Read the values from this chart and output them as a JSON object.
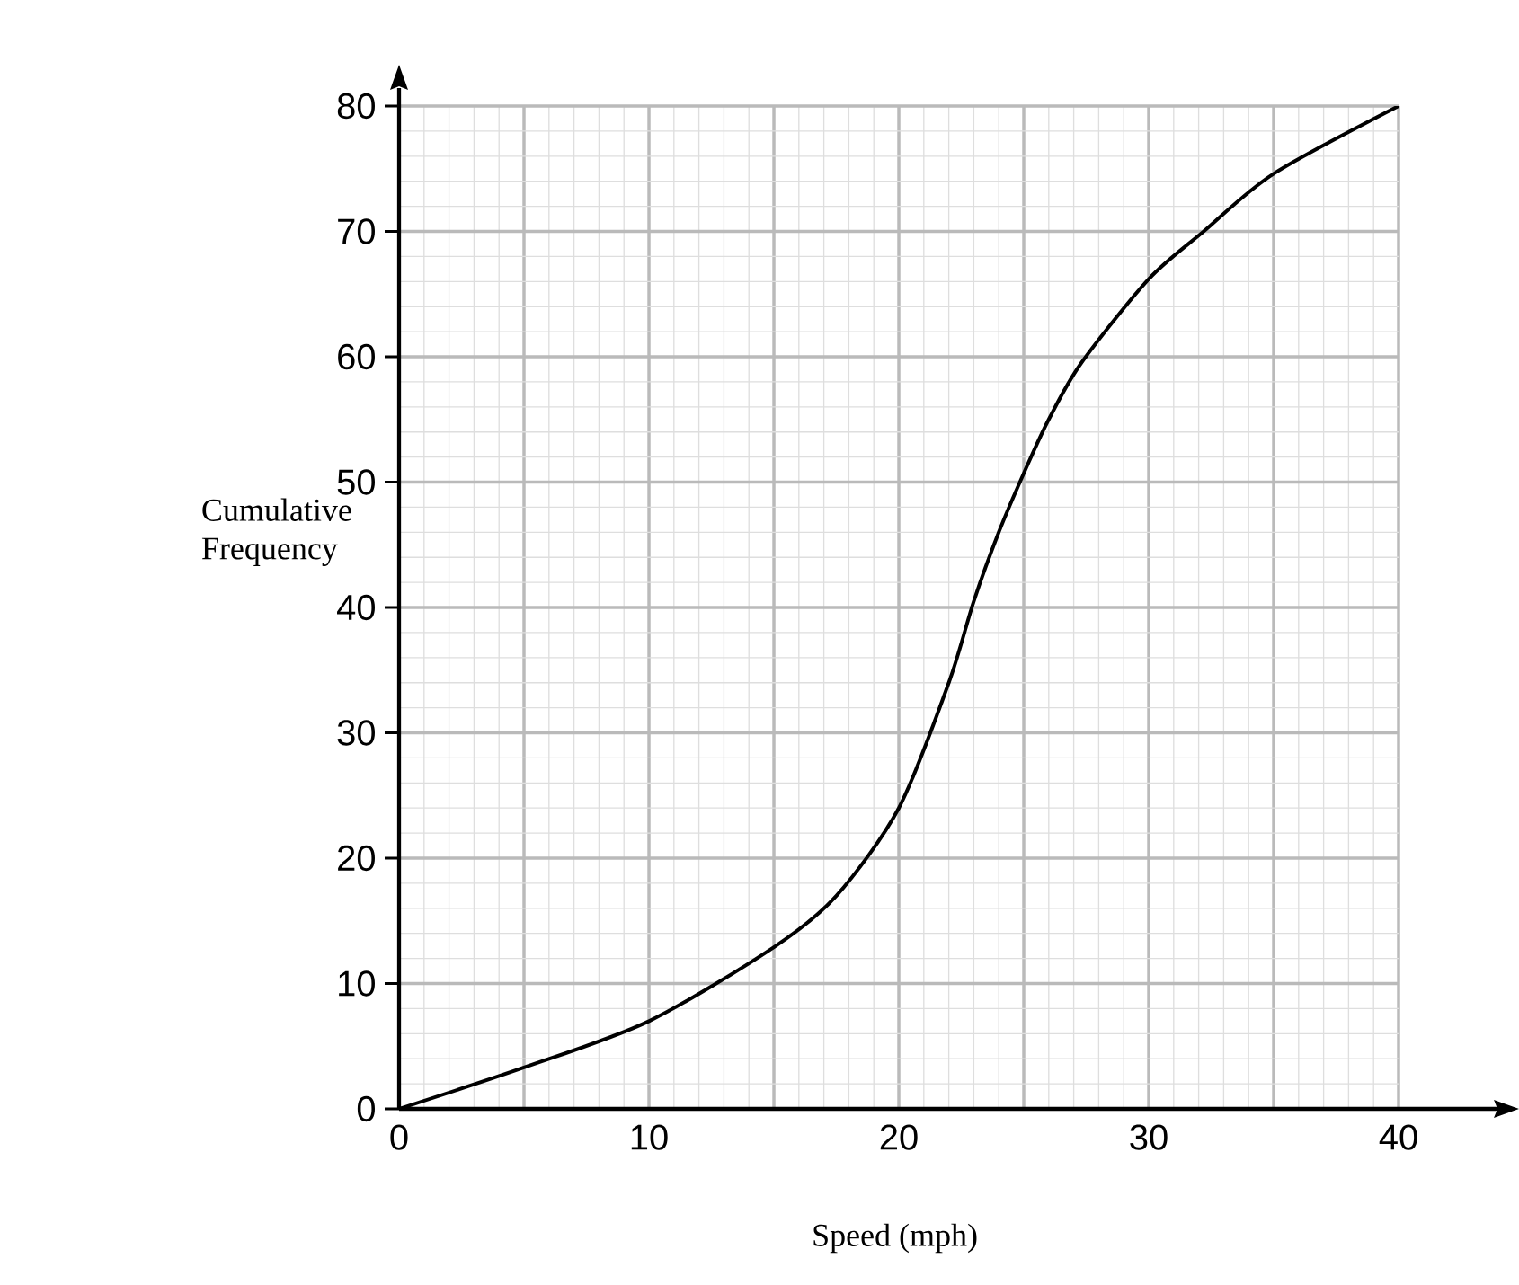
{
  "chart_data": {
    "type": "line",
    "xlabel": "Speed (mph)",
    "ylabel": "Cumulative Frequency",
    "x": [
      0,
      5,
      10,
      15,
      17.5,
      20,
      22,
      23,
      24,
      25,
      26,
      27.3,
      30,
      32.2,
      35,
      40
    ],
    "series": [
      {
        "color": "#000000",
        "values": [
          0,
          3.3,
          7,
          12.9,
          17,
          24,
          34,
          40.5,
          46,
          50.7,
          55,
          59.5,
          66.2,
          70,
          74.6,
          80
        ]
      }
    ],
    "xlim": [
      0,
      40
    ],
    "ylim": [
      0,
      80
    ],
    "xticks": [
      0,
      {
        "value": 5,
        "label": null
      },
      10,
      {
        "value": 15,
        "label": null
      },
      20,
      {
        "value": 25,
        "label": null
      },
      30,
      {
        "value": 35,
        "label": null
      },
      40
    ],
    "yticks": [
      0,
      10,
      20,
      30,
      40,
      50,
      60,
      70,
      80
    ],
    "grid": true,
    "marker": "none",
    "line_style": "solid"
  }
}
